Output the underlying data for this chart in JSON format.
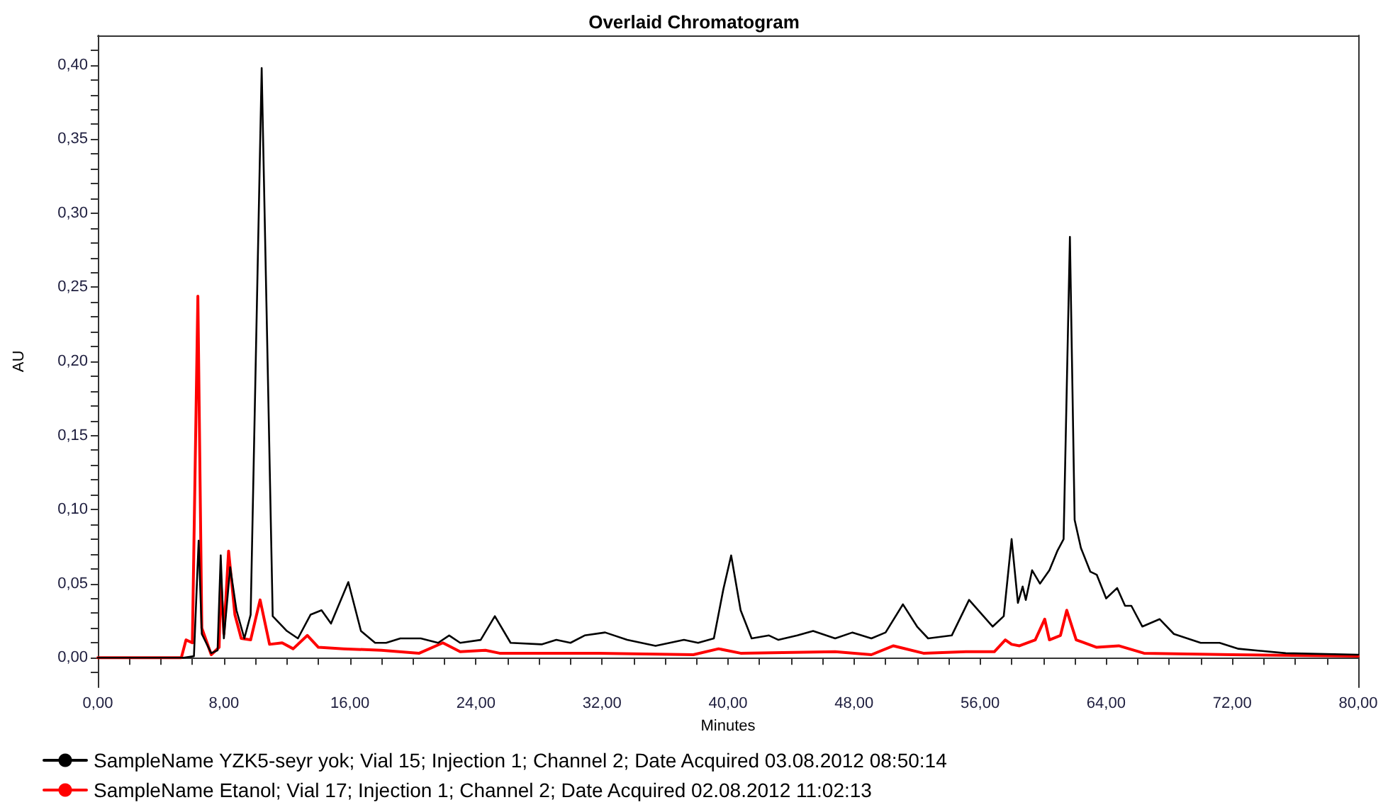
{
  "chart_data": {
    "type": "line",
    "title": "Overlaid Chromatogram",
    "xlabel": "Minutes",
    "ylabel": "AU",
    "xlim": [
      0,
      80
    ],
    "ylim": [
      -0.02,
      0.42
    ],
    "xticks": [
      {
        "value": 0,
        "label": "0,00"
      },
      {
        "value": 2,
        "label": null
      },
      {
        "value": 4,
        "label": null
      },
      {
        "value": 6,
        "label": null
      },
      {
        "value": 8,
        "label": "8,00"
      },
      {
        "value": 10,
        "label": null
      },
      {
        "value": 12,
        "label": null
      },
      {
        "value": 14,
        "label": null
      },
      {
        "value": 16,
        "label": "16,00"
      },
      {
        "value": 18,
        "label": null
      },
      {
        "value": 20,
        "label": null
      },
      {
        "value": 22,
        "label": null
      },
      {
        "value": 24,
        "label": "24,00"
      },
      {
        "value": 26,
        "label": null
      },
      {
        "value": 28,
        "label": null
      },
      {
        "value": 30,
        "label": null
      },
      {
        "value": 32,
        "label": "32,00"
      },
      {
        "value": 34,
        "label": null
      },
      {
        "value": 36,
        "label": null
      },
      {
        "value": 38,
        "label": null
      },
      {
        "value": 40,
        "label": "40,00"
      },
      {
        "value": 42,
        "label": null
      },
      {
        "value": 44,
        "label": null
      },
      {
        "value": 46,
        "label": null
      },
      {
        "value": 48,
        "label": "48,00"
      },
      {
        "value": 50,
        "label": null
      },
      {
        "value": 52,
        "label": null
      },
      {
        "value": 54,
        "label": null
      },
      {
        "value": 56,
        "label": "56,00"
      },
      {
        "value": 58,
        "label": null
      },
      {
        "value": 60,
        "label": null
      },
      {
        "value": 62,
        "label": null
      },
      {
        "value": 64,
        "label": "64,00"
      },
      {
        "value": 66,
        "label": null
      },
      {
        "value": 68,
        "label": null
      },
      {
        "value": 70,
        "label": null
      },
      {
        "value": 72,
        "label": "72,00"
      },
      {
        "value": 74,
        "label": null
      },
      {
        "value": 76,
        "label": null
      },
      {
        "value": 78,
        "label": null
      },
      {
        "value": 80,
        "label": "80,00"
      }
    ],
    "yticks": [
      {
        "value": -0.01,
        "label": null
      },
      {
        "value": 0,
        "label": "0,00"
      },
      {
        "value": 0.01,
        "label": null
      },
      {
        "value": 0.02,
        "label": null
      },
      {
        "value": 0.03,
        "label": null
      },
      {
        "value": 0.04,
        "label": null
      },
      {
        "value": 0.05,
        "label": "0,05"
      },
      {
        "value": 0.06,
        "label": null
      },
      {
        "value": 0.07,
        "label": null
      },
      {
        "value": 0.08,
        "label": null
      },
      {
        "value": 0.09,
        "label": null
      },
      {
        "value": 0.1,
        "label": "0,10"
      },
      {
        "value": 0.11,
        "label": null
      },
      {
        "value": 0.12,
        "label": null
      },
      {
        "value": 0.13,
        "label": null
      },
      {
        "value": 0.14,
        "label": null
      },
      {
        "value": 0.15,
        "label": "0,15"
      },
      {
        "value": 0.16,
        "label": null
      },
      {
        "value": 0.17,
        "label": null
      },
      {
        "value": 0.18,
        "label": null
      },
      {
        "value": 0.19,
        "label": null
      },
      {
        "value": 0.2,
        "label": "0,20"
      },
      {
        "value": 0.21,
        "label": null
      },
      {
        "value": 0.22,
        "label": null
      },
      {
        "value": 0.23,
        "label": null
      },
      {
        "value": 0.24,
        "label": null
      },
      {
        "value": 0.25,
        "label": "0,25"
      },
      {
        "value": 0.26,
        "label": null
      },
      {
        "value": 0.27,
        "label": null
      },
      {
        "value": 0.28,
        "label": null
      },
      {
        "value": 0.29,
        "label": null
      },
      {
        "value": 0.3,
        "label": "0,30"
      },
      {
        "value": 0.31,
        "label": null
      },
      {
        "value": 0.32,
        "label": null
      },
      {
        "value": 0.33,
        "label": null
      },
      {
        "value": 0.34,
        "label": null
      },
      {
        "value": 0.35,
        "label": "0,35"
      },
      {
        "value": 0.36,
        "label": null
      },
      {
        "value": 0.37,
        "label": null
      },
      {
        "value": 0.38,
        "label": null
      },
      {
        "value": 0.39,
        "label": null
      },
      {
        "value": 0.4,
        "label": "0,40"
      },
      {
        "value": 0.41,
        "label": null
      }
    ],
    "grid": false,
    "legend": "bottom left",
    "marker": "none",
    "line_style": "solid",
    "series": [
      {
        "name": "SampleName YZK5-seyr yok; Vial 15; Injection 1; Channel 2; Date Acquired 03.08.2012 08:50:14",
        "color": "#000000",
        "x": [
          0,
          5.45,
          6.1,
          6.4,
          6.6,
          7.2,
          7.6,
          7.8,
          8.0,
          8.4,
          8.8,
          9.3,
          9.7,
          10.1,
          10.4,
          10.7,
          11.1,
          12.0,
          12.7,
          13.5,
          14.2,
          14.8,
          15.9,
          16.7,
          17.6,
          18.3,
          19.2,
          20.5,
          21.6,
          22.3,
          23.0,
          24.3,
          25.2,
          26.2,
          28.2,
          29.1,
          30.0,
          30.9,
          32.2,
          33.6,
          35.4,
          37.2,
          38.1,
          39.1,
          39.7,
          40.2,
          40.8,
          41.5,
          42.6,
          43.2,
          44.4,
          45.4,
          46.8,
          47.9,
          49.1,
          50.0,
          51.1,
          52.0,
          52.7,
          54.2,
          55.3,
          56.8,
          57.5,
          58.0,
          58.4,
          58.7,
          58.9,
          59.3,
          59.8,
          60.4,
          60.9,
          61.3,
          61.7,
          62.0,
          62.4,
          63.0,
          63.4,
          64.0,
          64.7,
          65.2,
          65.6,
          66.3,
          67.4,
          68.3,
          70.0,
          71.2,
          72.4,
          75.4,
          80.0
        ],
        "values": [
          0,
          0,
          0.001,
          0.079,
          0.016,
          0.003,
          0.005,
          0.069,
          0.013,
          0.061,
          0.032,
          0.013,
          0.029,
          0.24,
          0.398,
          0.24,
          0.028,
          0.018,
          0.013,
          0.029,
          0.032,
          0.023,
          0.051,
          0.018,
          0.01,
          0.01,
          0.013,
          0.013,
          0.01,
          0.015,
          0.01,
          0.012,
          0.028,
          0.01,
          0.009,
          0.012,
          0.01,
          0.015,
          0.017,
          0.012,
          0.008,
          0.012,
          0.01,
          0.013,
          0.046,
          0.069,
          0.032,
          0.013,
          0.015,
          0.012,
          0.015,
          0.018,
          0.013,
          0.017,
          0.013,
          0.017,
          0.036,
          0.021,
          0.013,
          0.015,
          0.039,
          0.021,
          0.028,
          0.08,
          0.037,
          0.048,
          0.039,
          0.059,
          0.05,
          0.059,
          0.072,
          0.08,
          0.284,
          0.093,
          0.074,
          0.058,
          0.056,
          0.04,
          0.047,
          0.035,
          0.035,
          0.021,
          0.026,
          0.016,
          0.01,
          0.01,
          0.006,
          0.003,
          0.002
        ]
      },
      {
        "name": "SampleName Etanol; Vial 17; Injection 1; Channel 2; Date Acquired 02.08.2012 11:02:13",
        "color": "#ff0000",
        "x": [
          0,
          5.3,
          5.6,
          6.0,
          6.35,
          6.6,
          7.2,
          7.7,
          7.8,
          8.0,
          8.3,
          8.7,
          9.1,
          9.7,
          10.3,
          10.9,
          11.7,
          12.4,
          13.3,
          14.0,
          15.6,
          18.0,
          20.4,
          21.9,
          23.0,
          24.6,
          25.5,
          31.8,
          37.8,
          39.4,
          40.8,
          46.8,
          49.1,
          50.5,
          52.4,
          55.1,
          56.9,
          57.6,
          58.0,
          58.5,
          59.5,
          60.1,
          60.4,
          61.1,
          61.5,
          62.1,
          63.4,
          64.8,
          66.4,
          72.0,
          80.0
        ],
        "values": [
          0,
          0,
          0.012,
          0.01,
          0.244,
          0.02,
          0.002,
          0.007,
          0.053,
          0.016,
          0.072,
          0.029,
          0.013,
          0.012,
          0.039,
          0.009,
          0.01,
          0.006,
          0.015,
          0.007,
          0.006,
          0.005,
          0.003,
          0.01,
          0.004,
          0.005,
          0.003,
          0.003,
          0.002,
          0.006,
          0.003,
          0.004,
          0.002,
          0.008,
          0.003,
          0.004,
          0.004,
          0.012,
          0.009,
          0.008,
          0.012,
          0.026,
          0.012,
          0.015,
          0.032,
          0.012,
          0.007,
          0.008,
          0.003,
          0.002,
          0.001
        ]
      }
    ]
  }
}
